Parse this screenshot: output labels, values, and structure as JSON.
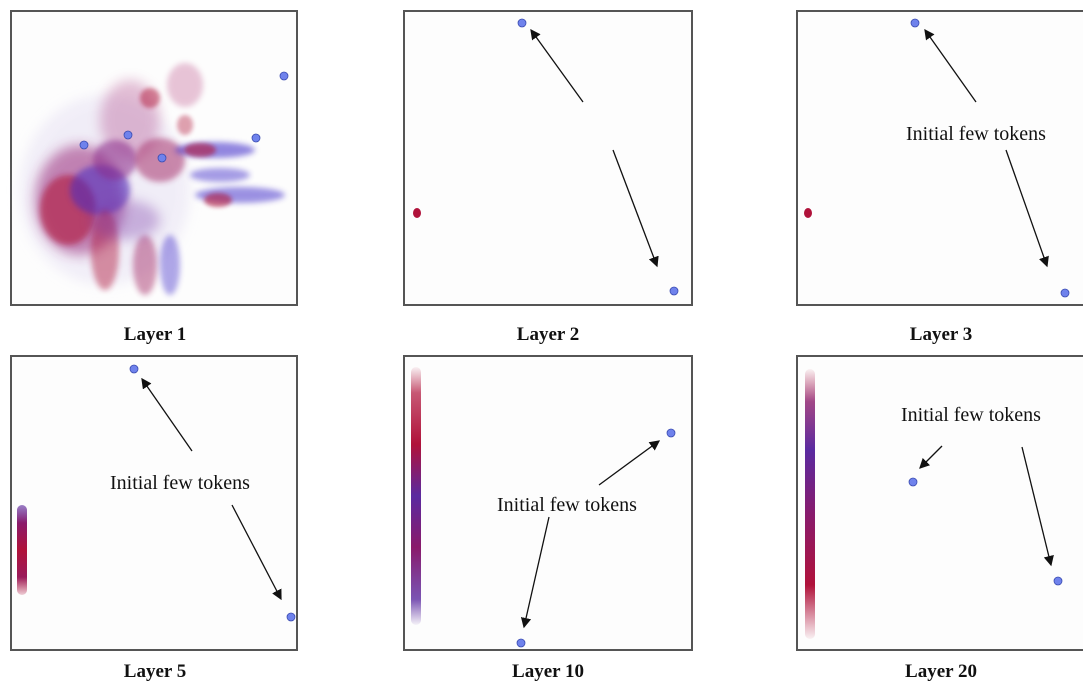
{
  "panels": [
    {
      "caption": "Layer 1",
      "annotation": ""
    },
    {
      "caption": "Layer 2",
      "annotation": ""
    },
    {
      "caption": "Layer 3",
      "annotation": "Initial few tokens"
    },
    {
      "caption": "Layer 5",
      "annotation": "Initial few tokens"
    },
    {
      "caption": "Layer 10",
      "annotation": "Initial few tokens"
    },
    {
      "caption": "Layer 20",
      "annotation": "Initial few tokens"
    }
  ],
  "colors": {
    "frame": "#555555",
    "token_point": "#6f82ec",
    "cluster_red": "#b0123a",
    "cluster_blue": "#3a28c8",
    "arrow": "#111111"
  }
}
